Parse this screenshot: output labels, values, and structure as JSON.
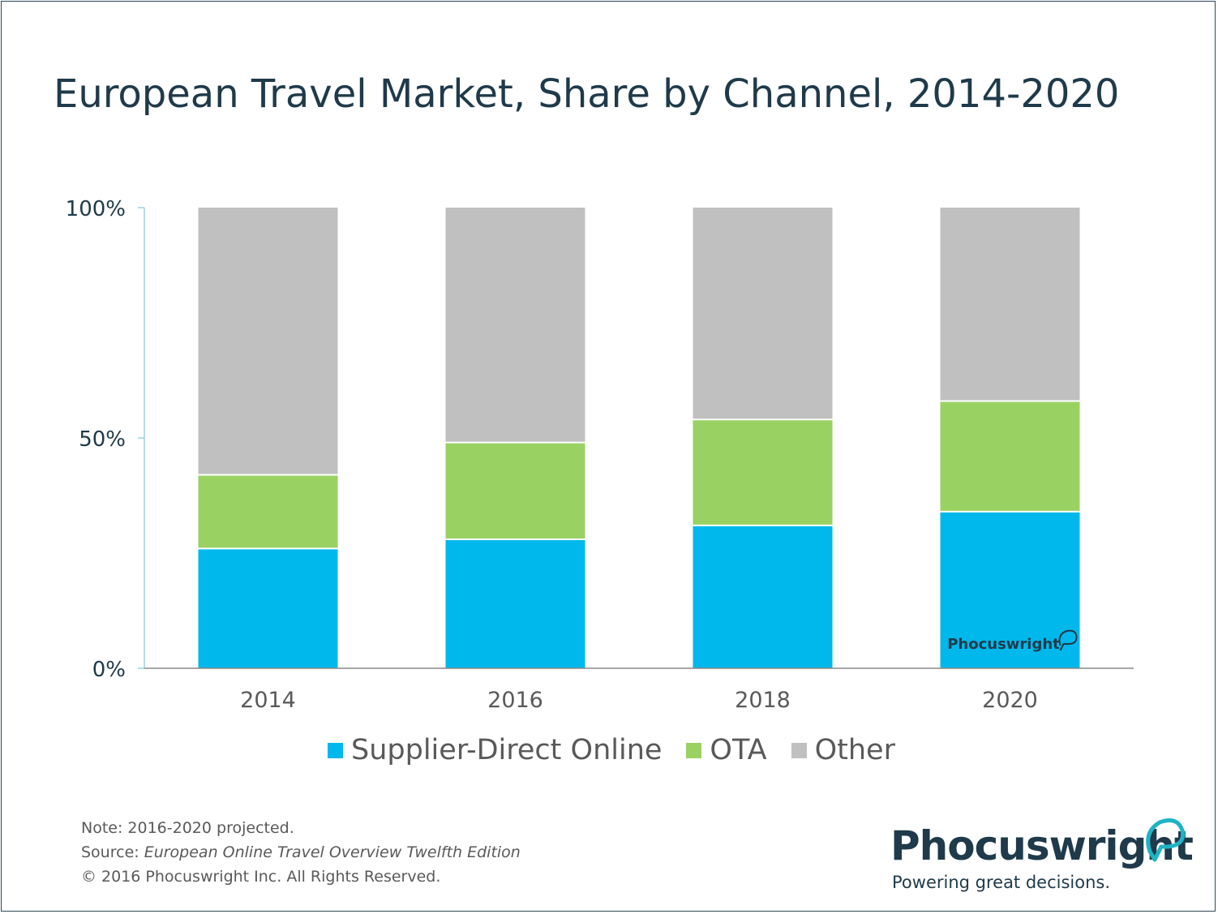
{
  "title": "European Travel Market, Share by Channel, 2014-2020",
  "chart_data": {
    "type": "bar",
    "stacked": true,
    "categories": [
      "2014",
      "2016",
      "2018",
      "2020"
    ],
    "series": [
      {
        "name": "Supplier-Direct Online",
        "color": "#00b8ec",
        "values": [
          26,
          28,
          31,
          34
        ]
      },
      {
        "name": "OTA",
        "color": "#99d262",
        "values": [
          16,
          21,
          23,
          24
        ]
      },
      {
        "name": "Other",
        "color": "#c0c0c0",
        "values": [
          58,
          51,
          46,
          42
        ]
      }
    ],
    "y_ticks": [
      {
        "value": 0,
        "label": "0%"
      },
      {
        "value": 50,
        "label": "50%"
      },
      {
        "value": 100,
        "label": "100%"
      }
    ],
    "ylim": [
      0,
      100
    ],
    "xlabel": "",
    "ylabel": "",
    "grid": false,
    "legend_position": "bottom",
    "watermark": "Phocuswright"
  },
  "footnotes": {
    "note": "Note: 2016-2020 projected.",
    "source_prefix": "Source: ",
    "source_title": "European Online Travel Overview Twelfth Edition",
    "copyright": "© 2016 Phocuswright Inc. All Rights Reserved."
  },
  "logo": {
    "name": "Phocuswright",
    "tagline": "Powering great decisions.",
    "icon": "speech-bubble-icon",
    "brand_color": "#1f3a4a",
    "accent_color": "#1fb3c6"
  }
}
